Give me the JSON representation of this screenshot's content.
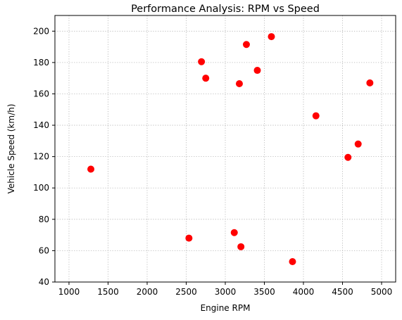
{
  "chart_data": {
    "type": "scatter",
    "title": "Performance Analysis: RPM vs Speed",
    "xlabel": "Engine RPM",
    "ylabel": "Vehicle Speed (km/h)",
    "xlim": [
      820,
      5180
    ],
    "ylim": [
      40,
      210
    ],
    "xticks": [
      1000,
      1500,
      2000,
      2500,
      3000,
      3500,
      4000,
      4500,
      5000
    ],
    "yticks": [
      40,
      60,
      80,
      100,
      120,
      140,
      160,
      180,
      200
    ],
    "grid": true,
    "marker_color": "#ff0000",
    "points": [
      {
        "x": 1280,
        "y": 112
      },
      {
        "x": 2535,
        "y": 68
      },
      {
        "x": 2695,
        "y": 180.5
      },
      {
        "x": 2750,
        "y": 170
      },
      {
        "x": 3115,
        "y": 71.5
      },
      {
        "x": 3180,
        "y": 166.5
      },
      {
        "x": 3200,
        "y": 62.5
      },
      {
        "x": 3270,
        "y": 191.5
      },
      {
        "x": 3410,
        "y": 175
      },
      {
        "x": 3590,
        "y": 196.5
      },
      {
        "x": 3860,
        "y": 53
      },
      {
        "x": 4160,
        "y": 146
      },
      {
        "x": 4570,
        "y": 119.5
      },
      {
        "x": 4700,
        "y": 128
      },
      {
        "x": 4850,
        "y": 167
      }
    ]
  }
}
